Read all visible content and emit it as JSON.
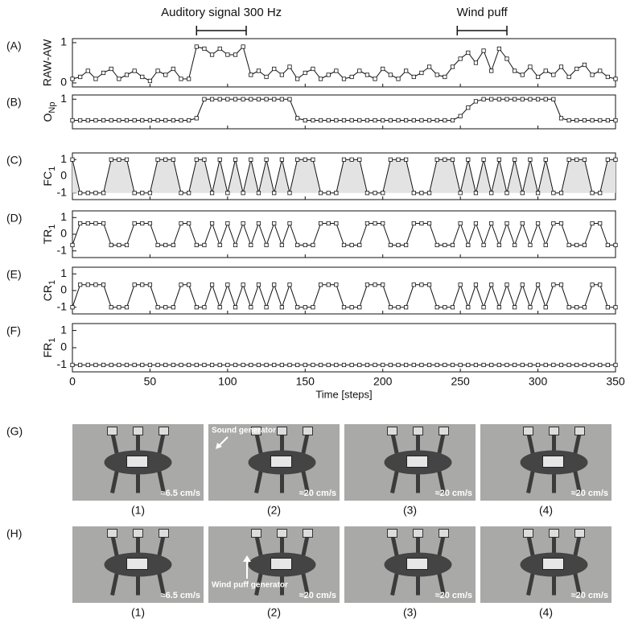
{
  "chart_data": {
    "type": "line",
    "annotations": [
      {
        "text": "Auditory signal 300 Hz",
        "x": [
          80,
          112
        ]
      },
      {
        "text": "Wind puff",
        "x": [
          248,
          280
        ]
      }
    ],
    "xlabel": "Time [steps]",
    "xlim": [
      0,
      350
    ],
    "xticks": [
      0,
      50,
      100,
      150,
      200,
      250,
      300,
      350
    ],
    "x": [
      0,
      5,
      10,
      15,
      20,
      25,
      30,
      35,
      40,
      45,
      50,
      55,
      60,
      65,
      70,
      75,
      80,
      85,
      90,
      95,
      100,
      105,
      110,
      115,
      120,
      125,
      130,
      135,
      140,
      145,
      150,
      155,
      160,
      165,
      170,
      175,
      180,
      185,
      190,
      195,
      200,
      205,
      210,
      215,
      220,
      225,
      230,
      235,
      240,
      245,
      250,
      255,
      260,
      265,
      270,
      275,
      280,
      285,
      290,
      295,
      300,
      305,
      310,
      315,
      320,
      325,
      330,
      335,
      340,
      345,
      350
    ],
    "panels": [
      {
        "label": "(A)",
        "ylabel": "RAW-AW",
        "ylim": [
          -0.1,
          1.1
        ],
        "yticks": [
          0,
          1
        ],
        "values": [
          0.1,
          0.15,
          0.3,
          0.1,
          0.25,
          0.35,
          0.1,
          0.2,
          0.3,
          0.15,
          0.05,
          0.3,
          0.2,
          0.35,
          0.1,
          0.1,
          0.9,
          0.85,
          0.7,
          0.85,
          0.7,
          0.7,
          0.9,
          0.2,
          0.3,
          0.15,
          0.35,
          0.2,
          0.4,
          0.1,
          0.25,
          0.35,
          0.1,
          0.2,
          0.3,
          0.1,
          0.15,
          0.3,
          0.2,
          0.1,
          0.35,
          0.2,
          0.1,
          0.3,
          0.15,
          0.25,
          0.4,
          0.2,
          0.15,
          0.4,
          0.6,
          0.75,
          0.5,
          0.8,
          0.3,
          0.85,
          0.6,
          0.3,
          0.2,
          0.4,
          0.15,
          0.3,
          0.2,
          0.4,
          0.15,
          0.35,
          0.45,
          0.2,
          0.3,
          0.15,
          0.1
        ]
      },
      {
        "label": "(B)",
        "ylabel": {
          "main": "O",
          "sub": "Np"
        },
        "ylim": [
          0.3,
          1.1
        ],
        "yticks": [
          1
        ],
        "values": [
          0.5,
          0.5,
          0.5,
          0.5,
          0.5,
          0.5,
          0.5,
          0.5,
          0.5,
          0.5,
          0.5,
          0.5,
          0.5,
          0.5,
          0.5,
          0.5,
          0.55,
          1,
          1,
          1,
          1,
          1,
          1,
          1,
          1,
          1,
          1,
          1,
          1,
          0.55,
          0.5,
          0.5,
          0.5,
          0.5,
          0.5,
          0.5,
          0.5,
          0.5,
          0.5,
          0.5,
          0.5,
          0.5,
          0.5,
          0.5,
          0.5,
          0.5,
          0.5,
          0.5,
          0.5,
          0.5,
          0.6,
          0.8,
          0.95,
          1,
          1,
          1,
          1,
          1,
          1,
          1,
          1,
          1,
          1,
          0.55,
          0.5,
          0.5,
          0.5,
          0.5,
          0.5,
          0.5,
          0.5
        ]
      },
      {
        "label": "(C)",
        "ylabel": {
          "main": "FC",
          "sub": "1"
        },
        "ylim": [
          -1.4,
          1.4
        ],
        "yticks": [
          -1,
          0,
          1
        ],
        "fill": "#e3e3e3",
        "values": [
          1,
          -1,
          -1,
          -1,
          -1,
          1,
          1,
          1,
          -1,
          -1,
          -1,
          1,
          1,
          1,
          -1,
          -1,
          1,
          1,
          -1,
          1,
          -1,
          1,
          -1,
          1,
          -1,
          1,
          -1,
          1,
          -1,
          1,
          1,
          1,
          -1,
          -1,
          -1,
          1,
          1,
          1,
          -1,
          -1,
          -1,
          1,
          1,
          1,
          -1,
          -1,
          -1,
          1,
          1,
          1,
          -1,
          1,
          -1,
          1,
          -1,
          1,
          -1,
          1,
          -1,
          1,
          -1,
          1,
          -1,
          -1,
          1,
          1,
          1,
          -1,
          -1,
          1,
          1
        ]
      },
      {
        "label": "(D)",
        "ylabel": {
          "main": "TR",
          "sub": "1"
        },
        "ylim": [
          -1.4,
          1.4
        ],
        "yticks": [
          -1,
          0,
          1
        ],
        "values": [
          -0.65,
          0.65,
          0.65,
          0.65,
          0.65,
          -0.65,
          -0.65,
          -0.65,
          0.65,
          0.65,
          0.65,
          -0.65,
          -0.65,
          -0.65,
          0.65,
          0.65,
          -0.65,
          -0.65,
          0.65,
          -0.65,
          0.65,
          -0.65,
          0.65,
          -0.65,
          0.65,
          -0.65,
          0.65,
          -0.65,
          0.65,
          -0.65,
          -0.65,
          -0.65,
          0.65,
          0.65,
          0.65,
          -0.65,
          -0.65,
          -0.65,
          0.65,
          0.65,
          0.65,
          -0.65,
          -0.65,
          -0.65,
          0.65,
          0.65,
          0.65,
          -0.65,
          -0.65,
          -0.65,
          0.65,
          -0.65,
          0.65,
          -0.65,
          0.65,
          -0.65,
          0.65,
          -0.65,
          0.65,
          -0.65,
          0.65,
          -0.65,
          0.65,
          0.65,
          -0.65,
          -0.65,
          -0.65,
          0.65,
          0.65,
          -0.65,
          -0.65
        ]
      },
      {
        "label": "(E)",
        "ylabel": {
          "main": "CR",
          "sub": "1"
        },
        "ylim": [
          -1.4,
          1.4
        ],
        "yticks": [
          -1,
          0,
          1
        ],
        "values": [
          -1,
          0.35,
          0.35,
          0.35,
          0.35,
          -1,
          -1,
          -1,
          0.35,
          0.35,
          0.35,
          -1,
          -1,
          -1,
          0.35,
          0.35,
          -1,
          -1,
          0.35,
          -1,
          0.35,
          -1,
          0.35,
          -1,
          0.35,
          -1,
          0.35,
          -1,
          0.35,
          -1,
          -1,
          -1,
          0.35,
          0.35,
          0.35,
          -1,
          -1,
          -1,
          0.35,
          0.35,
          0.35,
          -1,
          -1,
          -1,
          0.35,
          0.35,
          0.35,
          -1,
          -1,
          -1,
          0.35,
          -1,
          0.35,
          -1,
          0.35,
          -1,
          0.35,
          -1,
          0.35,
          -1,
          0.35,
          -1,
          0.35,
          0.35,
          -1,
          -1,
          -1,
          0.35,
          0.35,
          -1,
          -1
        ]
      },
      {
        "label": "(F)",
        "ylabel": {
          "main": "FR",
          "sub": "1"
        },
        "ylim": [
          -1.4,
          1.4
        ],
        "yticks": [
          -1,
          0,
          1
        ],
        "values": [
          -1,
          -1,
          -1,
          -1,
          -1,
          -1,
          -1,
          -1,
          -1,
          -1,
          -1,
          -1,
          -1,
          -1,
          -1,
          -1,
          -1,
          -1,
          -1,
          -1,
          -1,
          -1,
          -1,
          -1,
          -1,
          -1,
          -1,
          -1,
          -1,
          -1,
          -1,
          -1,
          -1,
          -1,
          -1,
          -1,
          -1,
          -1,
          -1,
          -1,
          -1,
          -1,
          -1,
          -1,
          -1,
          -1,
          -1,
          -1,
          -1,
          -1,
          -1,
          -1,
          -1,
          -1,
          -1,
          -1,
          -1,
          -1,
          -1,
          -1,
          -1,
          -1,
          -1,
          -1,
          -1,
          -1,
          -1,
          -1,
          -1,
          -1,
          -1
        ]
      }
    ]
  },
  "photos": {
    "rows": [
      {
        "label": "(G)",
        "panels": [
          {
            "caption": "(1)",
            "speed": "≈6.5 cm/s"
          },
          {
            "caption": "(2)",
            "speed": "≈20 cm/s",
            "note": "Sound generator"
          },
          {
            "caption": "(3)",
            "speed": "≈20 cm/s"
          },
          {
            "caption": "(4)",
            "speed": "≈20 cm/s"
          }
        ]
      },
      {
        "label": "(H)",
        "panels": [
          {
            "caption": "(1)",
            "speed": "≈6.5 cm/s"
          },
          {
            "caption": "(2)",
            "speed": "≈20 cm/s",
            "note": "Wind puff generator"
          },
          {
            "caption": "(3)",
            "speed": "≈20 cm/s"
          },
          {
            "caption": "(4)",
            "speed": "≈20 cm/s"
          }
        ]
      }
    ]
  }
}
